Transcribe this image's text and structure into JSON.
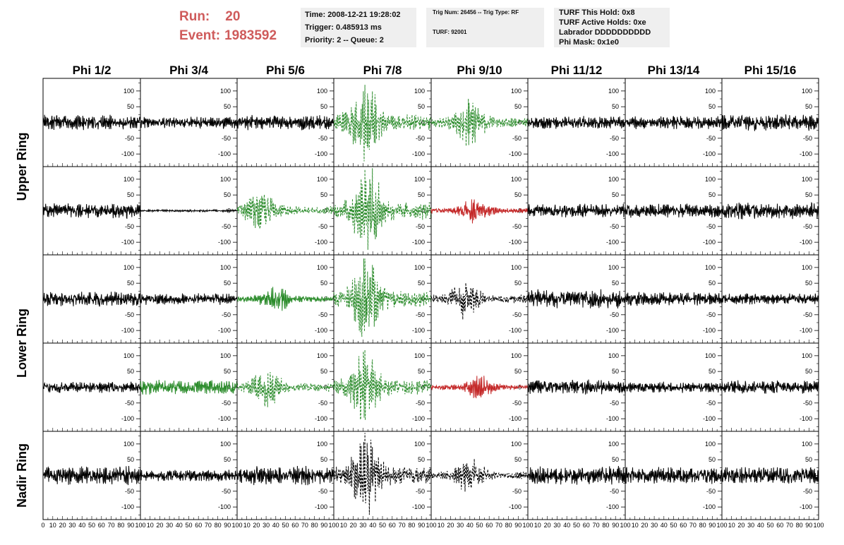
{
  "header": {
    "run_label": "Run:",
    "run_value": "20",
    "event_label": "Event:",
    "event_value": "1983592",
    "box1": [
      "Time: 2008-12-21 19:28:02",
      "Trigger: 0.485913 ms",
      "Priority: 2 -- Queue: 2"
    ],
    "box2": [
      "Trig Num: 26456 -- Trig Type: RF",
      "TURF: 92001"
    ],
    "box3": [
      "TURF This Hold: 0x8",
      "TURF Active Holds: 0xe",
      "Labrador DDDDDDDDDD",
      "Phi Mask: 0x1e0"
    ]
  },
  "colors": {
    "header_red": "#cf5b5b",
    "box_bg": "#efefef",
    "trace_black": "#000000",
    "trace_green": "#2c8c2c",
    "trace_red": "#c42828"
  },
  "chart_data": {
    "type": "line",
    "columns": [
      "Phi 1/2",
      "Phi 3/4",
      "Phi 5/6",
      "Phi 7/8",
      "Phi 9/10",
      "Phi 11/12",
      "Phi 13/14",
      "Phi 15/16"
    ],
    "rows": [
      "Upper Ring",
      "Upper Ring",
      "Lower Ring",
      "Lower Ring",
      "Nadir Ring"
    ],
    "row_labels": [
      "Upper Ring",
      "Lower Ring",
      "Nadir Ring"
    ],
    "xlim": [
      0,
      100
    ],
    "ylim": [
      -140,
      140
    ],
    "yticks": [
      "100",
      "50",
      "0",
      "-50",
      "-100"
    ],
    "xticks": [
      "0",
      "10",
      "20",
      "30",
      "40",
      "50",
      "60",
      "70",
      "80",
      "90",
      "100"
    ],
    "traces": [
      [
        {
          "color": "black",
          "style": "solid",
          "amp": 20,
          "envelope": "flat"
        },
        {
          "color": "black",
          "style": "solid",
          "amp": 15,
          "envelope": "flat"
        },
        {
          "color": "black",
          "style": "solid",
          "amp": 20,
          "envelope": "flat"
        },
        {
          "color": "green",
          "style": "dashed",
          "amp": 100,
          "envelope": "pulse",
          "center": 32
        },
        {
          "color": "green",
          "style": "dashed",
          "amp": 60,
          "envelope": "pulse",
          "center": 40
        },
        {
          "color": "black",
          "style": "solid",
          "amp": 17,
          "envelope": "flat"
        },
        {
          "color": "black",
          "style": "solid",
          "amp": 17,
          "envelope": "flat"
        },
        {
          "color": "black",
          "style": "solid",
          "amp": 22,
          "envelope": "flat"
        }
      ],
      [
        {
          "color": "black",
          "style": "solid",
          "amp": 20,
          "envelope": "flat"
        },
        {
          "color": "black",
          "style": "solid",
          "amp": 3,
          "envelope": "flat"
        },
        {
          "color": "green",
          "style": "dashed",
          "amp": 55,
          "envelope": "pulse",
          "center": 25
        },
        {
          "color": "green",
          "style": "dashed",
          "amp": 110,
          "envelope": "pulse",
          "center": 35
        },
        {
          "color": "red",
          "style": "solid",
          "amp": 30,
          "envelope": "pulse",
          "center": 45
        },
        {
          "color": "black",
          "style": "solid",
          "amp": 18,
          "envelope": "flat"
        },
        {
          "color": "black",
          "style": "solid",
          "amp": 18,
          "envelope": "flat"
        },
        {
          "color": "black",
          "style": "solid",
          "amp": 22,
          "envelope": "flat"
        }
      ],
      [
        {
          "color": "black",
          "style": "solid",
          "amp": 20,
          "envelope": "flat"
        },
        {
          "color": "black",
          "style": "solid",
          "amp": 15,
          "envelope": "flat"
        },
        {
          "color": "green",
          "style": "solid",
          "amp": 35,
          "envelope": "pulse",
          "center": 40
        },
        {
          "color": "green",
          "style": "dashed",
          "amp": 100,
          "envelope": "pulse",
          "center": 32
        },
        {
          "color": "black",
          "style": "dashed",
          "amp": 50,
          "envelope": "pulse",
          "center": 35
        },
        {
          "color": "black",
          "style": "solid",
          "amp": 25,
          "envelope": "flat"
        },
        {
          "color": "black",
          "style": "solid",
          "amp": 18,
          "envelope": "flat"
        },
        {
          "color": "black",
          "style": "solid",
          "amp": 15,
          "envelope": "flat"
        }
      ],
      [
        {
          "color": "black",
          "style": "solid",
          "amp": 15,
          "envelope": "flat"
        },
        {
          "color": "green",
          "style": "solid",
          "amp": 20,
          "envelope": "flat"
        },
        {
          "color": "green",
          "style": "dashed",
          "amp": 50,
          "envelope": "pulse",
          "center": 30
        },
        {
          "color": "green",
          "style": "dashed",
          "amp": 90,
          "envelope": "pulse",
          "center": 32
        },
        {
          "color": "red",
          "style": "solid",
          "amp": 30,
          "envelope": "pulse",
          "center": 50
        },
        {
          "color": "black",
          "style": "solid",
          "amp": 20,
          "envelope": "flat"
        },
        {
          "color": "black",
          "style": "solid",
          "amp": 15,
          "envelope": "flat"
        },
        {
          "color": "black",
          "style": "solid",
          "amp": 18,
          "envelope": "flat"
        }
      ],
      [
        {
          "color": "black",
          "style": "solid",
          "amp": 25,
          "envelope": "flat"
        },
        {
          "color": "black",
          "style": "solid",
          "amp": 15,
          "envelope": "flat"
        },
        {
          "color": "black",
          "style": "solid",
          "amp": 25,
          "envelope": "flat"
        },
        {
          "color": "black",
          "style": "dashed",
          "amp": 100,
          "envelope": "pulse",
          "center": 33
        },
        {
          "color": "black",
          "style": "dashed",
          "amp": 45,
          "envelope": "pulse",
          "center": 40
        },
        {
          "color": "black",
          "style": "solid",
          "amp": 25,
          "envelope": "flat"
        },
        {
          "color": "black",
          "style": "solid",
          "amp": 22,
          "envelope": "flat"
        },
        {
          "color": "black",
          "style": "solid",
          "amp": 22,
          "envelope": "flat"
        }
      ]
    ]
  }
}
